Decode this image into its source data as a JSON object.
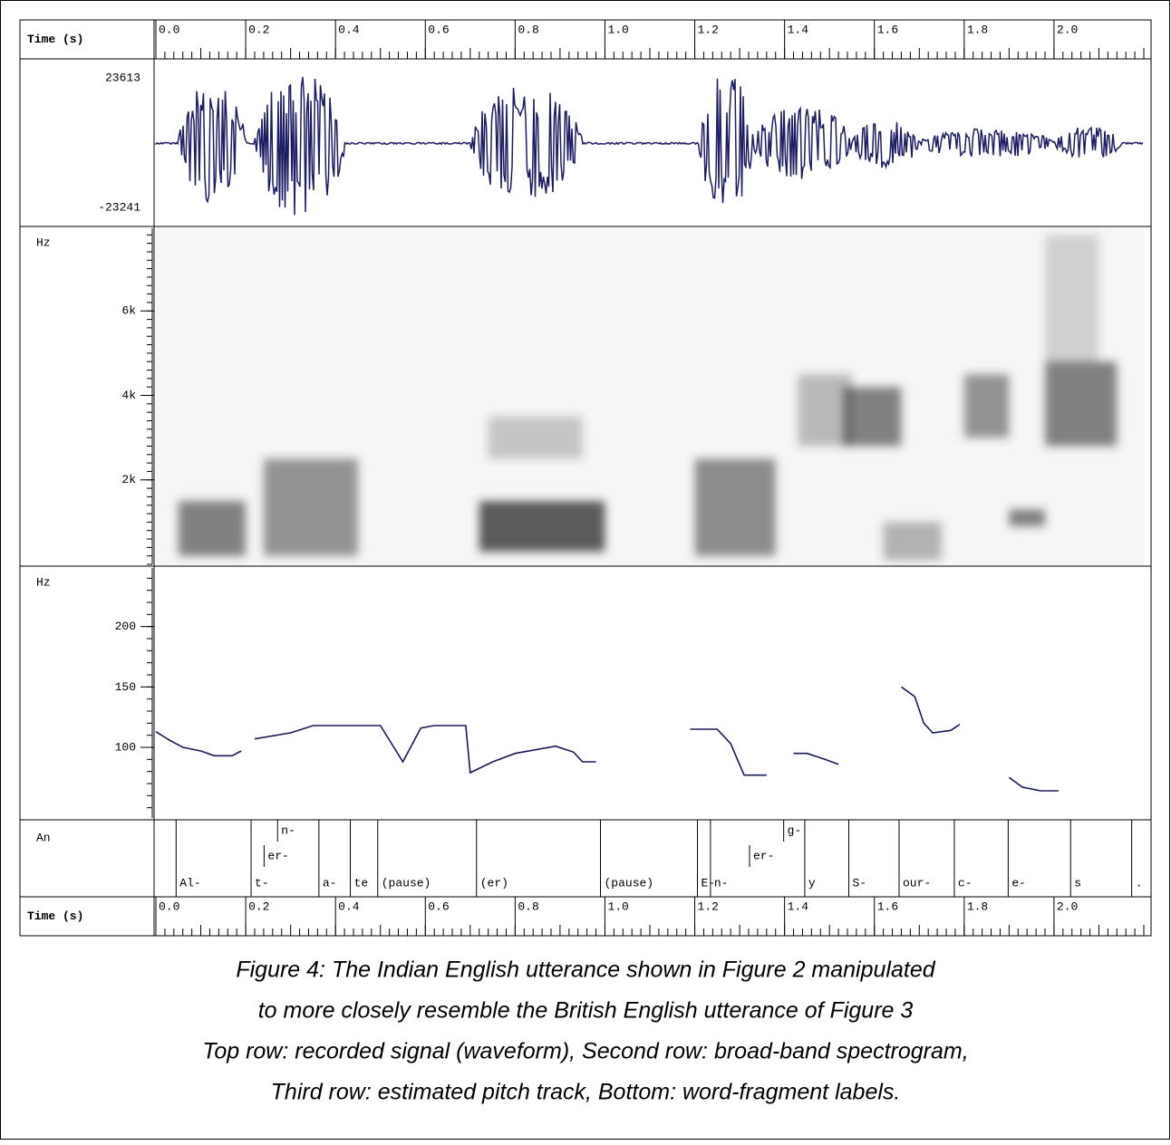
{
  "figure": {
    "time_label": "Time (s)",
    "xlim": [
      0,
      2.2
    ],
    "xticks": [
      {
        "value": 0,
        "label": "0.0"
      },
      {
        "value": 0.2,
        "label": "0.2"
      },
      {
        "value": 0.4,
        "label": "0.4"
      },
      {
        "value": 0.6,
        "label": "0.6"
      },
      {
        "value": 0.8,
        "label": "0.8"
      },
      {
        "value": 1,
        "label": "1.0"
      },
      {
        "value": 1.2,
        "label": "1.2"
      },
      {
        "value": 1.4,
        "label": "1.4"
      },
      {
        "value": 1.6,
        "label": "1.6"
      },
      {
        "value": 1.8,
        "label": "1.8"
      },
      {
        "value": 2,
        "label": "2.0"
      }
    ],
    "waveform": {
      "ylim": [
        -23241,
        23613
      ]
    },
    "spectrogram": {
      "ylabel": "Hz",
      "ylim": [
        0,
        8000
      ],
      "yticks": [
        {
          "value": 2000,
          "label": "2k"
        },
        {
          "value": 4000,
          "label": "4k"
        },
        {
          "value": 6000,
          "label": "6k"
        }
      ]
    },
    "pitch": {
      "type": "line",
      "ylabel": "Hz",
      "ylim": [
        40,
        250
      ],
      "yticks": [
        100,
        150,
        200
      ],
      "color": "#1a1a5a",
      "x": [
        0,
        0.03,
        0.06,
        0.1,
        0.13,
        0.17,
        0.19,
        0.2,
        0.22,
        0.3,
        0.35,
        0.45,
        0.5,
        0.55,
        0.59,
        0.62,
        0.69,
        0.7,
        0.75,
        0.8,
        0.89,
        0.93,
        0.95,
        0.98,
        1.0,
        1.19,
        1.25,
        1.28,
        1.31,
        1.36,
        1.38,
        1.42,
        1.45,
        1.49,
        1.52,
        1.55,
        1.66,
        1.69,
        1.71,
        1.73,
        1.77,
        1.79,
        1.85,
        1.9,
        1.93,
        1.97,
        2.01
      ],
      "values": [
        113,
        106,
        100,
        97,
        93,
        93,
        97,
        null,
        107,
        112,
        118,
        118,
        118,
        88,
        116,
        118,
        118,
        79,
        88,
        95,
        101,
        96,
        88,
        88,
        null,
        115,
        115,
        103,
        77,
        77,
        null,
        95,
        95,
        90,
        86,
        null,
        150,
        142,
        120,
        112,
        114,
        119,
        null,
        75,
        67,
        64,
        64
      ]
    },
    "annotation": {
      "label": "An",
      "items": [
        {
          "text": "Al-",
          "start": 0.045
        },
        {
          "text": "t-",
          "start": 0.212
        },
        {
          "text": "er-",
          "start": 0.241
        },
        {
          "text": "n-",
          "start": 0.271
        },
        {
          "text": "a-",
          "start": 0.363
        },
        {
          "text": "te",
          "start": 0.433
        },
        {
          "text": "(pause)",
          "start": 0.494
        },
        {
          "text": "(er)",
          "start": 0.714
        },
        {
          "text": "(pause)",
          "start": 0.99
        },
        {
          "text": "E-",
          "start": 1.206
        },
        {
          "text": "n-",
          "start": 1.235
        },
        {
          "text": "er-",
          "start": 1.322
        },
        {
          "text": "g-",
          "start": 1.398
        },
        {
          "text": "y",
          "start": 1.445
        },
        {
          "text": "S-",
          "start": 1.543
        },
        {
          "text": "our-",
          "start": 1.655
        },
        {
          "text": "c-",
          "start": 1.778
        },
        {
          "text": "e-",
          "start": 1.898
        },
        {
          "text": "s",
          "start": 2.037
        },
        {
          "text": ".",
          "start": 2.173
        }
      ]
    },
    "caption": [
      "Figure 4: The Indian English utterance shown in Figure 2 manipulated",
      "to more closely resemble the British English utterance of Figure 3",
      "Top row: recorded signal (waveform), Second row: broad-band spectrogram,",
      "Third row: estimated pitch track, Bottom: word-fragment labels."
    ]
  }
}
